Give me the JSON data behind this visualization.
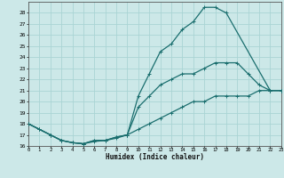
{
  "series": [
    {
      "x": [
        0,
        1,
        2,
        3,
        4,
        5,
        6,
        7,
        8,
        9,
        10,
        11,
        12,
        13,
        14,
        15,
        16,
        17,
        18,
        22,
        23
      ],
      "y": [
        18,
        17.5,
        17,
        16.5,
        16.3,
        16.2,
        16.5,
        16.5,
        16.8,
        17,
        20.5,
        22.5,
        24.5,
        25.2,
        26.5,
        27.2,
        28.5,
        28.5,
        28.0,
        21.0,
        21.0
      ]
    },
    {
      "x": [
        0,
        1,
        2,
        3,
        4,
        5,
        6,
        7,
        8,
        9,
        10,
        11,
        12,
        13,
        14,
        15,
        16,
        17,
        18,
        19,
        20,
        21,
        22,
        23
      ],
      "y": [
        18,
        17.5,
        17,
        16.5,
        16.3,
        16.2,
        16.5,
        16.5,
        16.8,
        17,
        19.5,
        20.5,
        21.5,
        22.0,
        22.5,
        22.5,
        23.0,
        23.5,
        23.5,
        23.5,
        22.5,
        21.5,
        21.0,
        21.0
      ]
    },
    {
      "x": [
        0,
        1,
        2,
        3,
        4,
        5,
        6,
        7,
        8,
        9,
        10,
        11,
        12,
        13,
        14,
        15,
        16,
        17,
        18,
        19,
        20,
        21,
        22,
        23
      ],
      "y": [
        18,
        17.5,
        17,
        16.5,
        16.3,
        16.2,
        16.4,
        16.5,
        16.7,
        17.0,
        17.5,
        18.0,
        18.5,
        19.0,
        19.5,
        20.0,
        20.0,
        20.5,
        20.5,
        20.5,
        20.5,
        21.0,
        21.0,
        21.0
      ]
    }
  ],
  "xlim": [
    0,
    23
  ],
  "ylim": [
    16,
    29
  ],
  "yticks": [
    16,
    17,
    18,
    19,
    20,
    21,
    22,
    23,
    24,
    25,
    26,
    27,
    28
  ],
  "xticks": [
    0,
    1,
    2,
    3,
    4,
    5,
    6,
    7,
    8,
    9,
    10,
    11,
    12,
    13,
    14,
    15,
    16,
    17,
    18,
    19,
    20,
    21,
    22,
    23
  ],
  "xlabel": "Humidex (Indice chaleur)",
  "bg_color": "#cce8e8",
  "grid_color": "#aad4d4",
  "line_color": "#1a6e6e"
}
